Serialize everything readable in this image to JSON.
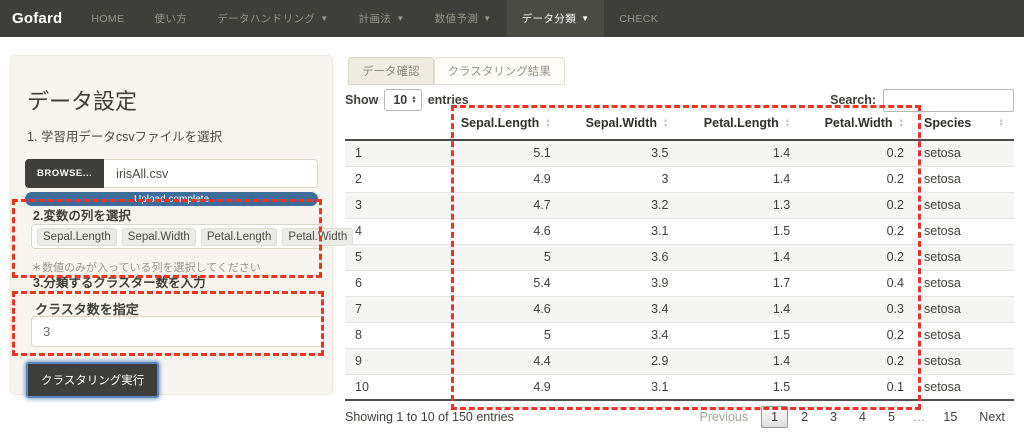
{
  "colors": {
    "annotation_red": "#ea3424",
    "primary_blue": "#3e6d9c",
    "navbar_bg": "#3e3f3a",
    "panel_bg": "#f8f5f0"
  },
  "navbar": {
    "brand": "Gofard",
    "caret": "▼",
    "items": [
      {
        "id": "home",
        "label": "HOME",
        "dropdown": false,
        "active": false
      },
      {
        "id": "howto",
        "label": "使い方",
        "dropdown": false,
        "active": false
      },
      {
        "id": "data-handling",
        "label": "データハンドリング",
        "dropdown": true,
        "active": false
      },
      {
        "id": "planning",
        "label": "計画法",
        "dropdown": true,
        "active": false
      },
      {
        "id": "numeric-prediction",
        "label": "数値予測",
        "dropdown": true,
        "active": false
      },
      {
        "id": "data-classification",
        "label": "データ分類",
        "dropdown": true,
        "active": true
      },
      {
        "id": "check",
        "label": "CHECK",
        "dropdown": false,
        "active": false
      }
    ]
  },
  "sidebar": {
    "title": "データ設定",
    "step1_label": "1. 学習用データcsvファイルを選択",
    "browse_label": "BROWSE...",
    "file_name": "irisAll.csv",
    "upload_status": "Upload complete",
    "step2_label": "2.変数の列を選択",
    "selected_columns": [
      "Sepal.Length",
      "Sepal.Width",
      "Petal.Length",
      "Petal.Width"
    ],
    "note": "＊数値のみが入っている列を選択してください",
    "step3_label": "3.分類するクラスター数を入力",
    "cluster_label": "クラスタ数を指定",
    "cluster_value": "3",
    "run_button": "クラスタリング実行"
  },
  "main": {
    "tabs": [
      {
        "id": "data-check",
        "label": "データ確認",
        "active": true
      },
      {
        "id": "clustering-result",
        "label": "クラスタリング結果",
        "active": false
      }
    ],
    "show_label": "Show",
    "page_length": "10",
    "entries_label": "entries",
    "search_label": "Search:",
    "search_value": "",
    "table": {
      "columns": [
        "",
        "Sepal.Length",
        "Sepal.Width",
        "Petal.Length",
        "Petal.Width",
        "Species"
      ],
      "rows": [
        [
          "1",
          "5.1",
          "3.5",
          "1.4",
          "0.2",
          "setosa"
        ],
        [
          "2",
          "4.9",
          "3",
          "1.4",
          "0.2",
          "setosa"
        ],
        [
          "3",
          "4.7",
          "3.2",
          "1.3",
          "0.2",
          "setosa"
        ],
        [
          "4",
          "4.6",
          "3.1",
          "1.5",
          "0.2",
          "setosa"
        ],
        [
          "5",
          "5",
          "3.6",
          "1.4",
          "0.2",
          "setosa"
        ],
        [
          "6",
          "5.4",
          "3.9",
          "1.7",
          "0.4",
          "setosa"
        ],
        [
          "7",
          "4.6",
          "3.4",
          "1.4",
          "0.3",
          "setosa"
        ],
        [
          "8",
          "5",
          "3.4",
          "1.5",
          "0.2",
          "setosa"
        ],
        [
          "9",
          "4.4",
          "2.9",
          "1.4",
          "0.2",
          "setosa"
        ],
        [
          "10",
          "4.9",
          "3.1",
          "1.5",
          "0.1",
          "setosa"
        ]
      ]
    },
    "info": "Showing 1 to 10 of 150 entries",
    "pagination": {
      "previous": "Previous",
      "pages": [
        "1",
        "2",
        "3",
        "4",
        "5",
        "…",
        "15"
      ],
      "current": "1",
      "next": "Next"
    }
  }
}
